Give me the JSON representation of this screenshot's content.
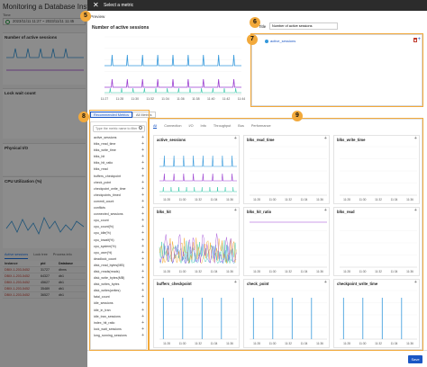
{
  "background": {
    "title": "Monitoring a Database Instance",
    "time_label": "Time",
    "time_range": "2023/11/11 11:27 ~ 2023/11/11 11:45",
    "panels": [
      {
        "title": "Number of active sessions"
      },
      {
        "title": "Lock wait count"
      },
      {
        "title": "Physical I/O"
      },
      {
        "title": "CPU Utilization (%)"
      }
    ],
    "tabs": [
      "Active sessions",
      "Lock tree",
      "Process info"
    ],
    "table": {
      "headers": [
        "Instance",
        "pid",
        "Database"
      ],
      "rows": [
        [
          "DBIX-1-203-5452",
          "31727",
          "dbms"
        ],
        [
          "DBIX-1-203-5452",
          "64327",
          "db1"
        ],
        [
          "DBIX-1-203-5452",
          "45627",
          "db1"
        ],
        [
          "DBIX-1-203-5452",
          "35489",
          "db1"
        ],
        [
          "DBIX-1-203-5452",
          "36527",
          "db1"
        ]
      ]
    }
  },
  "modal": {
    "header_title": "Select a metric",
    "close_icon": "close-icon",
    "preview_label": "Preview",
    "preview_title": "Number of active sessions",
    "preview_xticks": [
      "11:27",
      "11:28",
      "11:30",
      "11:32",
      "11:34",
      "11:36",
      "11:38",
      "11:40",
      "11:42",
      "11:44"
    ],
    "title_label": "Title",
    "title_value": "Number of active sessions",
    "selected_metric": "active_sessions",
    "tabs": {
      "recommended": "Recommended Metrics",
      "all": "All Metrics"
    },
    "search_placeholder": "Type the metric name to filter",
    "metrics": [
      "active_sessions",
      "blks_read_time",
      "blks_write_time",
      "blks_hit",
      "blks_hit_ratio",
      "blks_read",
      "buffers_checkpoint",
      "check_point",
      "checkpoint_write_time",
      "checkpoints_timed",
      "commit_count",
      "conflicts",
      "connected_sessions",
      "cpu_count",
      "cpu_count(%)",
      "cpu_idle(%)",
      "cpu_iowait(%)",
      "cpu_system(%)",
      "cpu_user(%)",
      "deadlock_count",
      "disk_read_bytes(MB)",
      "disk_reads(reads)",
      "disk_write_bytes(MB)",
      "disk_writes_bytes",
      "disk_writes(writes)",
      "fatal_count",
      "idle_sessions",
      "idle_in_tran",
      "idle_tran_sessions",
      "index_hit_ratio",
      "lock_wait_sessions",
      "long_running_sessions"
    ],
    "category_tabs": [
      "All",
      "Connection",
      "I/O",
      "Info",
      "Throughput",
      "Bus",
      "Performance"
    ],
    "chart_cells": [
      {
        "name": "active_sessions",
        "kind": "sessions"
      },
      {
        "name": "blks_read_time",
        "kind": "empty"
      },
      {
        "name": "blks_write_time",
        "kind": "empty"
      },
      {
        "name": "blks_hit",
        "kind": "dense"
      },
      {
        "name": "blks_hit_ratio",
        "kind": "ratio"
      },
      {
        "name": "blks_read",
        "kind": "empty"
      },
      {
        "name": "buffers_checkpoint",
        "kind": "spikes"
      },
      {
        "name": "check_point",
        "kind": "spikes"
      },
      {
        "name": "checkpoint_write_time",
        "kind": "spikes"
      }
    ],
    "cell_xticks": [
      "11:28",
      "11:30",
      "11:32",
      "11:34",
      "11:36"
    ],
    "save_label": "Save",
    "badges": [
      "5",
      "6",
      "7",
      "8",
      "9"
    ]
  },
  "colors": {
    "accent": "#1a56c4",
    "badge": "#f2a93b",
    "header": "#2c2c2c",
    "series_blue": "#3498db",
    "series_purple": "#9b3fd1"
  }
}
